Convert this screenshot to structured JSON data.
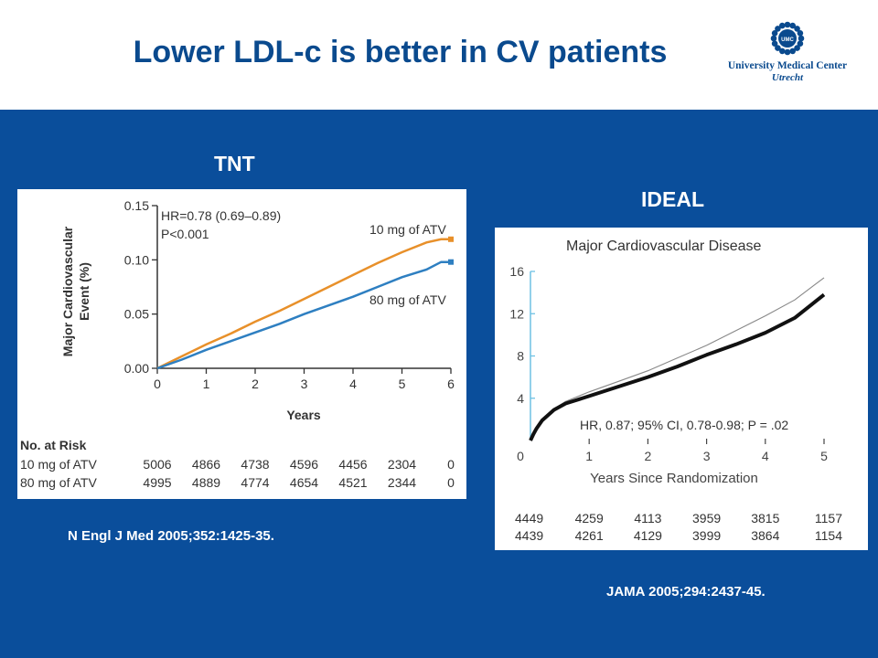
{
  "slide": {
    "title": "Lower LDL-c is better in CV patients"
  },
  "logo": {
    "line1": "University Medical Center",
    "line2": "Utrecht",
    "seal_text": "UMC"
  },
  "tnt": {
    "heading": "TNT",
    "citation": "N Engl J Med 2005;352:1425-35.",
    "hr_line1": "HR=0.78 (0.69–0.89)",
    "hr_line2": "P<0.001",
    "ylabel_line1": "Major Cardiovascular",
    "ylabel_line2": "Event (%)",
    "xlabel": "Years",
    "risk_heading": "No. at Risk"
  },
  "ideal": {
    "heading": "IDEAL",
    "citation": "JAMA 2005;294:2437-45.",
    "chart_title": "Major Cardiovascular Disease",
    "hr_text": "HR, 0.87; 95% CI, 0.78-0.98; P = .02",
    "xlabel": "Years Since Randomization"
  },
  "colors": {
    "band": "#0a4e9b",
    "title": "#0a4a8e",
    "orange": "#e8902a",
    "blue": "#2e7fc1"
  },
  "chart_data": [
    {
      "type": "line",
      "title": "",
      "xlabel": "Years",
      "ylabel": "Major Cardiovascular Event (%)",
      "xlim": [
        0,
        6
      ],
      "ylim": [
        0,
        0.15
      ],
      "xticks": [
        "0",
        "1",
        "2",
        "3",
        "4",
        "5",
        "6"
      ],
      "yticks": [
        "0.00",
        "0.05",
        "0.10",
        "0.15"
      ],
      "series": [
        {
          "name": "10 mg of ATV",
          "x": [
            0,
            0.5,
            1,
            1.5,
            2,
            2.5,
            3,
            3.5,
            4,
            4.5,
            5,
            5.5,
            5.8,
            6
          ],
          "values": [
            0,
            0.011,
            0.022,
            0.032,
            0.043,
            0.053,
            0.064,
            0.075,
            0.086,
            0.097,
            0.107,
            0.116,
            0.119,
            0.119
          ]
        },
        {
          "name": "80 mg of ATV",
          "x": [
            0,
            0.5,
            1,
            1.5,
            2,
            2.5,
            3,
            3.5,
            4,
            4.5,
            5,
            5.5,
            5.8,
            6
          ],
          "values": [
            0,
            0.008,
            0.017,
            0.025,
            0.033,
            0.041,
            0.05,
            0.058,
            0.066,
            0.075,
            0.084,
            0.091,
            0.098,
            0.098
          ]
        }
      ],
      "risk_table": {
        "rows": [
          {
            "label": "10 mg of ATV",
            "values": [
              "5006",
              "4866",
              "4738",
              "4596",
              "4456",
              "2304",
              "0"
            ]
          },
          {
            "label": "80 mg of ATV",
            "values": [
              "4995",
              "4889",
              "4774",
              "4654",
              "4521",
              "2344",
              "0"
            ]
          }
        ]
      }
    },
    {
      "type": "line",
      "title": "Major Cardiovascular Disease",
      "xlabel": "Years Since Randomization",
      "ylabel": "",
      "xlim": [
        0,
        5
      ],
      "ylim": [
        0,
        16
      ],
      "xticks": [
        "0",
        "1",
        "2",
        "3",
        "4",
        "5"
      ],
      "yticks": [
        "0",
        "4",
        "8",
        "12",
        "16"
      ],
      "series": [
        {
          "x": [
            0,
            0.05,
            0.1,
            0.2,
            0.4,
            0.6,
            1,
            1.5,
            2,
            2.5,
            3,
            3.5,
            4,
            4.5,
            5
          ],
          "values": [
            0,
            0.6,
            1.1,
            2.0,
            3.0,
            3.7,
            4.6,
            5.6,
            6.6,
            7.8,
            9.0,
            10.4,
            11.8,
            13.3,
            15.4
          ]
        },
        {
          "x": [
            0,
            0.05,
            0.1,
            0.2,
            0.4,
            0.6,
            1,
            1.5,
            2,
            2.5,
            3,
            3.5,
            4,
            4.5,
            5
          ],
          "values": [
            0,
            0.6,
            1.1,
            1.9,
            2.9,
            3.5,
            4.2,
            5.1,
            6.0,
            7.0,
            8.1,
            9.1,
            10.2,
            11.6,
            13.8
          ]
        }
      ],
      "risk_table": {
        "rows": [
          {
            "values": [
              "4449",
              "4259",
              "4113",
              "3959",
              "3815",
              "1157"
            ]
          },
          {
            "values": [
              "4439",
              "4261",
              "4129",
              "3999",
              "3864",
              "1154"
            ]
          }
        ]
      }
    }
  ]
}
